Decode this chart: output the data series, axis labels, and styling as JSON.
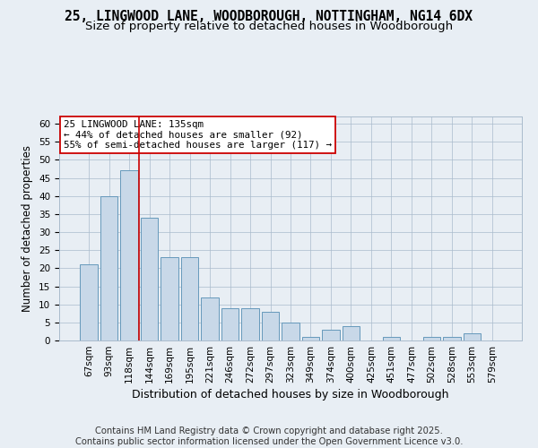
{
  "title_line1": "25, LINGWOOD LANE, WOODBOROUGH, NOTTINGHAM, NG14 6DX",
  "title_line2": "Size of property relative to detached houses in Woodborough",
  "xlabel": "Distribution of detached houses by size in Woodborough",
  "ylabel": "Number of detached properties",
  "categories": [
    "67sqm",
    "93sqm",
    "118sqm",
    "144sqm",
    "169sqm",
    "195sqm",
    "221sqm",
    "246sqm",
    "272sqm",
    "297sqm",
    "323sqm",
    "349sqm",
    "374sqm",
    "400sqm",
    "425sqm",
    "451sqm",
    "477sqm",
    "502sqm",
    "528sqm",
    "553sqm",
    "579sqm"
  ],
  "values": [
    21,
    40,
    47,
    34,
    23,
    23,
    12,
    9,
    9,
    8,
    5,
    1,
    3,
    4,
    0,
    1,
    0,
    1,
    1,
    2,
    0
  ],
  "bar_color": "#c8d8e8",
  "bar_edge_color": "#6699bb",
  "vline_x": 2.5,
  "vline_color": "#cc0000",
  "annotation_line1": "25 LINGWOOD LANE: 135sqm",
  "annotation_line2": "← 44% of detached houses are smaller (92)",
  "annotation_line3": "55% of semi-detached houses are larger (117) →",
  "annotation_box_color": "#ffffff",
  "annotation_box_edge": "#cc0000",
  "ylim": [
    0,
    62
  ],
  "yticks": [
    0,
    5,
    10,
    15,
    20,
    25,
    30,
    35,
    40,
    45,
    50,
    55,
    60
  ],
  "background_color": "#e8eef4",
  "axes_background": "#e8eef4",
  "grid_color": "#aabbcc",
  "footer_text": "Contains HM Land Registry data © Crown copyright and database right 2025.\nContains public sector information licensed under the Open Government Licence v3.0.",
  "title_fontsize": 10.5,
  "subtitle_fontsize": 9.5,
  "xlabel_fontsize": 9,
  "ylabel_fontsize": 8.5,
  "tick_fontsize": 7.5,
  "footer_fontsize": 7.2,
  "annotation_fontsize": 7.8
}
